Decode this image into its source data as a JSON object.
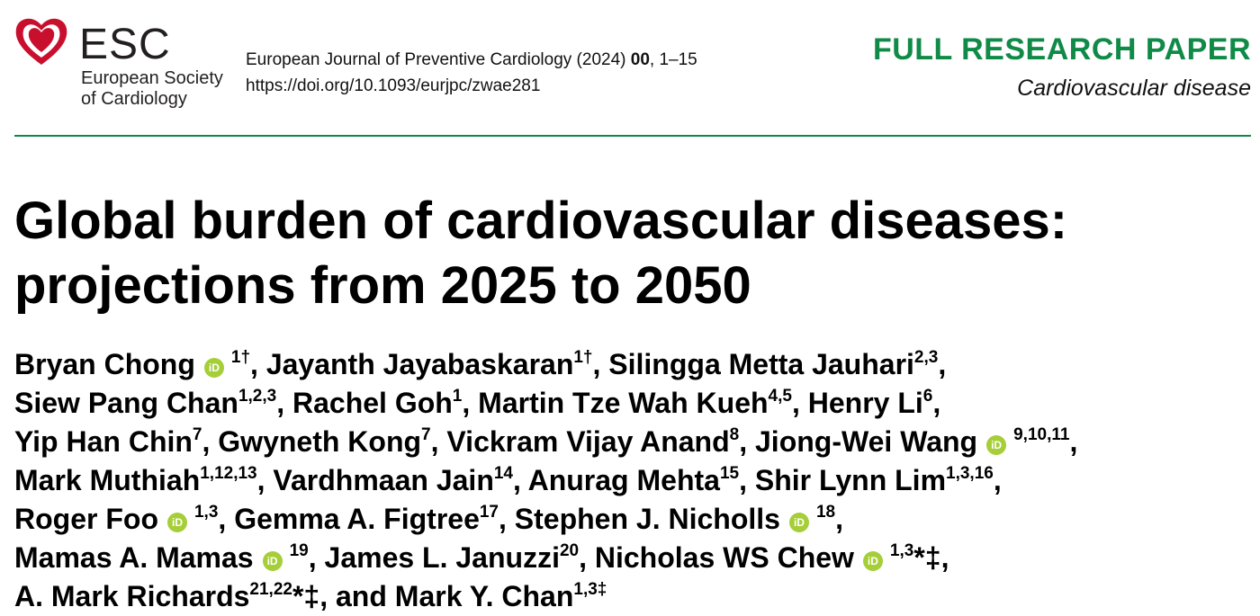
{
  "header": {
    "logo_text": "ESC",
    "society_name": "European Society\nof Cardiology",
    "journal_line": "European Journal of Preventive Cardiology (2024)",
    "journal_volume": "00",
    "journal_pages": ", 1–15",
    "doi": "https://doi.org/10.1093/eurjpc/zwae281",
    "paper_type": "FULL RESEARCH PAPER",
    "subject": "Cardiovascular disease"
  },
  "colors": {
    "accent_green": "#0f8a47",
    "orcid_green": "#a6ce39",
    "logo_red": "#c8102e"
  },
  "title_lines": [
    "Global burden of cardiovascular diseases:",
    "projections from 2025 to 2050"
  ],
  "authors": [
    {
      "name": "Bryan Chong",
      "orcid": true,
      "sup": "1†",
      "sep": ", "
    },
    {
      "name": "Jayanth Jayabaskaran",
      "orcid": false,
      "sup": "1†",
      "sep": ", "
    },
    {
      "name": "Silingga Metta Jauhari",
      "orcid": false,
      "sup": "2,3",
      "sep": ","
    },
    {
      "name": "Siew Pang Chan",
      "orcid": false,
      "sup": "1,2,3",
      "sep": ", "
    },
    {
      "name": "Rachel Goh",
      "orcid": false,
      "sup": "1",
      "sep": ", "
    },
    {
      "name": "Martin Tze Wah Kueh",
      "orcid": false,
      "sup": "4,5",
      "sep": ", "
    },
    {
      "name": "Henry Li",
      "orcid": false,
      "sup": "6",
      "sep": ","
    },
    {
      "name": "Yip Han Chin",
      "orcid": false,
      "sup": "7",
      "sep": ", "
    },
    {
      "name": "Gwyneth Kong",
      "orcid": false,
      "sup": "7",
      "sep": ", "
    },
    {
      "name": "Vickram Vijay Anand",
      "orcid": false,
      "sup": "8",
      "sep": ", "
    },
    {
      "name": "Jiong-Wei Wang",
      "orcid": true,
      "sup": "9,10,11",
      "sep": ","
    },
    {
      "name": "Mark Muthiah",
      "orcid": false,
      "sup": "1,12,13",
      "sep": ", "
    },
    {
      "name": "Vardhmaan Jain",
      "orcid": false,
      "sup": "14",
      "sep": ", "
    },
    {
      "name": "Anurag Mehta",
      "orcid": false,
      "sup": "15",
      "sep": ", "
    },
    {
      "name": "Shir Lynn Lim",
      "orcid": false,
      "sup": "1,3,16",
      "sep": ","
    },
    {
      "name": "Roger Foo",
      "orcid": true,
      "sup": "1,3",
      "sep": ", "
    },
    {
      "name": "Gemma A. Figtree",
      "orcid": false,
      "sup": "17",
      "sep": ", "
    },
    {
      "name": "Stephen J. Nicholls",
      "orcid": true,
      "sup": "18",
      "sep": ","
    },
    {
      "name": "Mamas A. Mamas",
      "orcid": true,
      "sup": "19",
      "sep": ", "
    },
    {
      "name": "James L. Januzzi",
      "orcid": false,
      "sup": "20",
      "sep": ", "
    },
    {
      "name": "Nicholas WS Chew",
      "orcid": true,
      "sup": "1,3",
      "marks": "*‡",
      "sep": ","
    },
    {
      "name": "A. Mark Richards",
      "orcid": false,
      "sup": "21,22",
      "marks": "*‡",
      "sep": ", and "
    },
    {
      "name": "Mark Y. Chan",
      "orcid": false,
      "sup": "1,3‡",
      "sep": ""
    }
  ],
  "author_lines": [
    [
      0,
      1,
      2
    ],
    [
      3,
      4,
      5,
      6
    ],
    [
      7,
      8,
      9,
      10
    ],
    [
      11,
      12,
      13,
      14
    ],
    [
      15,
      16,
      17
    ],
    [
      18,
      19,
      20
    ],
    [
      21,
      22
    ]
  ]
}
